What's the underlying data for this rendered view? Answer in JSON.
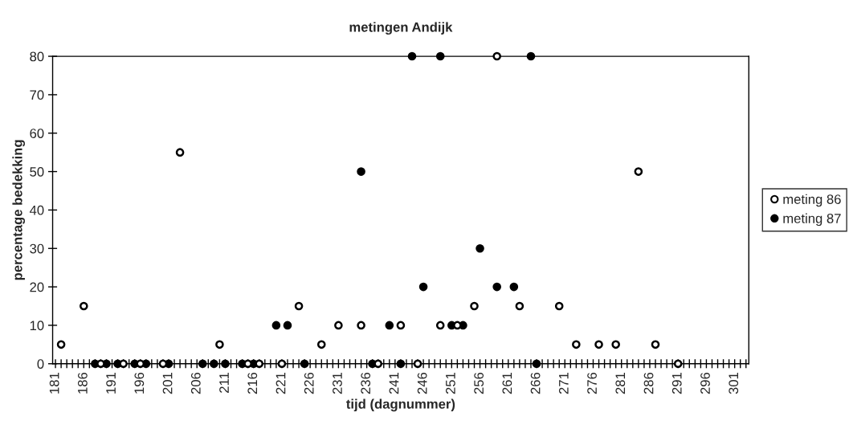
{
  "chart_data": {
    "type": "scatter",
    "title": "metingen Andijk",
    "xlabel": "tijd (dagnummer)",
    "ylabel": "percentage bedekking",
    "series": [
      {
        "name": "meting 86",
        "color": "#ffffff",
        "x": [
          182,
          186,
          189,
          193,
          196,
          200,
          203,
          210,
          215,
          217,
          221,
          224,
          228,
          231,
          235,
          238,
          242,
          245,
          249,
          252,
          255,
          259,
          263,
          270,
          273,
          277,
          280,
          284,
          287,
          291
        ],
        "values": [
          5,
          15,
          0,
          0,
          0,
          0,
          55,
          5,
          0,
          0,
          0,
          15,
          5,
          10,
          10,
          0,
          10,
          0,
          10,
          10,
          15,
          80,
          15,
          15,
          5,
          5,
          5,
          50,
          5,
          0
        ]
      },
      {
        "name": "meting 87",
        "color": "#000000",
        "x": [
          188,
          190,
          192,
          195,
          197,
          201,
          207,
          209,
          211,
          214,
          216,
          220,
          222,
          225,
          235,
          237,
          240,
          242,
          244,
          246,
          249,
          251,
          253,
          256,
          259,
          262,
          265,
          266
        ],
        "values": [
          0,
          0,
          0,
          0,
          0,
          0,
          0,
          0,
          0,
          0,
          0,
          10,
          10,
          0,
          50,
          0,
          10,
          0,
          80,
          20,
          80,
          10,
          10,
          30,
          20,
          20,
          80,
          0
        ]
      }
    ],
    "marker": "circle",
    "legend": "right",
    "grid": false,
    "xlim": [
      180.5,
      303.5
    ],
    "ylim": [
      0,
      80
    ],
    "yticks": [
      0,
      10,
      20,
      30,
      40,
      50,
      60,
      70,
      80
    ],
    "xticks": [
      181,
      {
        "value": 182,
        "label": null
      },
      {
        "value": 183,
        "label": null
      },
      {
        "value": 184,
        "label": null
      },
      {
        "value": 185,
        "label": null
      },
      186,
      {
        "value": 187,
        "label": null
      },
      {
        "value": 188,
        "label": null
      },
      {
        "value": 189,
        "label": null
      },
      {
        "value": 190,
        "label": null
      },
      191,
      {
        "value": 192,
        "label": null
      },
      {
        "value": 193,
        "label": null
      },
      {
        "value": 194,
        "label": null
      },
      {
        "value": 195,
        "label": null
      },
      196,
      {
        "value": 197,
        "label": null
      },
      {
        "value": 198,
        "label": null
      },
      {
        "value": 199,
        "label": null
      },
      {
        "value": 200,
        "label": null
      },
      201,
      {
        "value": 202,
        "label": null
      },
      {
        "value": 203,
        "label": null
      },
      {
        "value": 204,
        "label": null
      },
      {
        "value": 205,
        "label": null
      },
      206,
      {
        "value": 207,
        "label": null
      },
      {
        "value": 208,
        "label": null
      },
      {
        "value": 209,
        "label": null
      },
      {
        "value": 210,
        "label": null
      },
      211,
      {
        "value": 212,
        "label": null
      },
      {
        "value": 213,
        "label": null
      },
      {
        "value": 214,
        "label": null
      },
      {
        "value": 215,
        "label": null
      },
      216,
      {
        "value": 217,
        "label": null
      },
      {
        "value": 218,
        "label": null
      },
      {
        "value": 219,
        "label": null
      },
      {
        "value": 220,
        "label": null
      },
      221,
      {
        "value": 222,
        "label": null
      },
      {
        "value": 223,
        "label": null
      },
      {
        "value": 224,
        "label": null
      },
      {
        "value": 225,
        "label": null
      },
      226,
      {
        "value": 227,
        "label": null
      },
      {
        "value": 228,
        "label": null
      },
      {
        "value": 229,
        "label": null
      },
      {
        "value": 230,
        "label": null
      },
      231,
      {
        "value": 232,
        "label": null
      },
      {
        "value": 233,
        "label": null
      },
      {
        "value": 234,
        "label": null
      },
      {
        "value": 235,
        "label": null
      },
      236,
      {
        "value": 237,
        "label": null
      },
      {
        "value": 238,
        "label": null
      },
      {
        "value": 239,
        "label": null
      },
      {
        "value": 240,
        "label": null
      },
      241,
      {
        "value": 242,
        "label": null
      },
      {
        "value": 243,
        "label": null
      },
      {
        "value": 244,
        "label": null
      },
      {
        "value": 245,
        "label": null
      },
      246,
      {
        "value": 247,
        "label": null
      },
      {
        "value": 248,
        "label": null
      },
      {
        "value": 249,
        "label": null
      },
      {
        "value": 250,
        "label": null
      },
      251,
      {
        "value": 252,
        "label": null
      },
      {
        "value": 253,
        "label": null
      },
      {
        "value": 254,
        "label": null
      },
      {
        "value": 255,
        "label": null
      },
      256,
      {
        "value": 257,
        "label": null
      },
      {
        "value": 258,
        "label": null
      },
      {
        "value": 259,
        "label": null
      },
      {
        "value": 260,
        "label": null
      },
      261,
      {
        "value": 262,
        "label": null
      },
      {
        "value": 263,
        "label": null
      },
      {
        "value": 264,
        "label": null
      },
      {
        "value": 265,
        "label": null
      },
      266,
      {
        "value": 267,
        "label": null
      },
      {
        "value": 268,
        "label": null
      },
      {
        "value": 269,
        "label": null
      },
      {
        "value": 270,
        "label": null
      },
      271,
      {
        "value": 272,
        "label": null
      },
      {
        "value": 273,
        "label": null
      },
      {
        "value": 274,
        "label": null
      },
      {
        "value": 275,
        "label": null
      },
      276,
      {
        "value": 277,
        "label": null
      },
      {
        "value": 278,
        "label": null
      },
      {
        "value": 279,
        "label": null
      },
      {
        "value": 280,
        "label": null
      },
      281,
      {
        "value": 282,
        "label": null
      },
      {
        "value": 283,
        "label": null
      },
      {
        "value": 284,
        "label": null
      },
      {
        "value": 285,
        "label": null
      },
      286,
      {
        "value": 287,
        "label": null
      },
      {
        "value": 288,
        "label": null
      },
      {
        "value": 289,
        "label": null
      },
      {
        "value": 290,
        "label": null
      },
      291,
      {
        "value": 292,
        "label": null
      },
      {
        "value": 293,
        "label": null
      },
      {
        "value": 294,
        "label": null
      },
      {
        "value": 295,
        "label": null
      },
      296,
      {
        "value": 297,
        "label": null
      },
      {
        "value": 298,
        "label": null
      },
      {
        "value": 299,
        "label": null
      },
      {
        "value": 300,
        "label": null
      },
      301,
      {
        "value": 302,
        "label": null
      },
      {
        "value": 303,
        "label": null
      }
    ]
  }
}
